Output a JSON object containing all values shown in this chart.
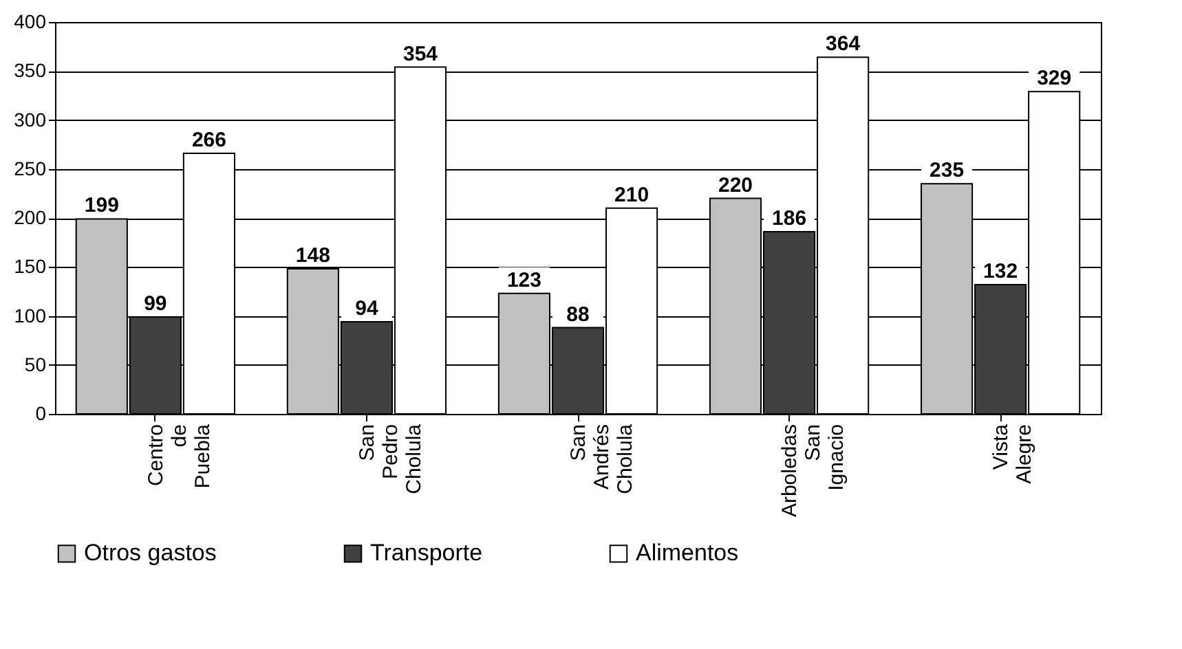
{
  "chart_data": {
    "type": "bar",
    "categories": [
      "Centro de Puebla",
      "San Pedro Cholula",
      "San Andrés Cholula",
      "Arboledas San Ignacio",
      "Vista Alegre"
    ],
    "series": [
      {
        "name": "Otros gastos",
        "color": "#c0c0c0",
        "values": [
          199,
          148,
          123,
          220,
          235
        ]
      },
      {
        "name": "Transporte",
        "color": "#404040",
        "values": [
          99,
          94,
          88,
          186,
          132
        ]
      },
      {
        "name": "Alimentos",
        "color": "#ffffff",
        "values": [
          266,
          354,
          210,
          364,
          329
        ]
      }
    ],
    "ylim": [
      0,
      400
    ],
    "yticks": [
      0,
      50,
      100,
      150,
      200,
      250,
      300,
      350,
      400
    ],
    "grid": "y",
    "legend": "bottom",
    "data_labels": true
  }
}
